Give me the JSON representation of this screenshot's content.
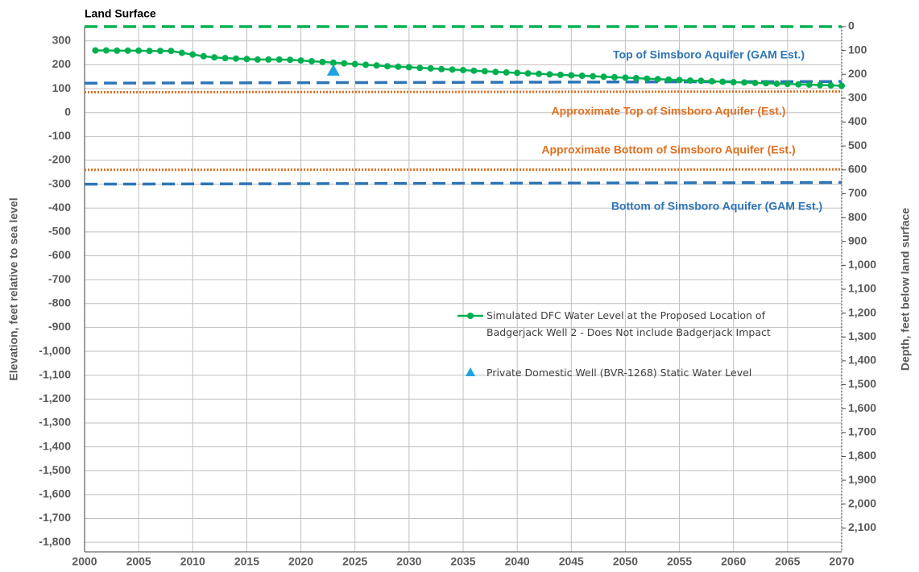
{
  "chart_data": {
    "type": "line",
    "y_label": "Elevation, feet relative to sea level",
    "y2_label": "Depth, feet below land surface",
    "xlim": [
      2000,
      2070
    ],
    "xticks": [
      2000,
      2005,
      2010,
      2015,
      2020,
      2025,
      2030,
      2035,
      2040,
      2045,
      2050,
      2055,
      2060,
      2065,
      2070
    ],
    "ylim": [
      -1840,
      360
    ],
    "yticks": [
      300,
      200,
      100,
      0,
      -100,
      -200,
      -300,
      -400,
      -500,
      -600,
      -700,
      -800,
      -900,
      {
        "value": -1000,
        "label": "-1,000"
      },
      {
        "value": -1100,
        "label": "-1,100"
      },
      {
        "value": -1200,
        "label": "-1,200"
      },
      {
        "value": -1300,
        "label": "-1,300"
      },
      {
        "value": -1400,
        "label": "-1,400"
      },
      {
        "value": -1500,
        "label": "-1,500"
      },
      {
        "value": -1600,
        "label": "-1,600"
      },
      {
        "value": -1700,
        "label": "-1,700"
      },
      {
        "value": -1800,
        "label": "-1,800"
      }
    ],
    "y2lim": [
      0,
      2200
    ],
    "y2ticks": [
      0,
      100,
      200,
      300,
      400,
      500,
      600,
      700,
      800,
      900,
      {
        "value": 1000,
        "label": "1,000"
      },
      {
        "value": 1100,
        "label": "1,100"
      },
      {
        "value": 1200,
        "label": "1,200"
      },
      {
        "value": 1300,
        "label": "1,300"
      },
      {
        "value": 1400,
        "label": "1,400"
      },
      {
        "value": 1500,
        "label": "1,500"
      },
      {
        "value": 1600,
        "label": "1,600"
      },
      {
        "value": 1700,
        "label": "1,700"
      },
      {
        "value": 1800,
        "label": "1,800"
      },
      {
        "value": 1900,
        "label": "1,900"
      },
      {
        "value": 2000,
        "label": "2,000"
      },
      {
        "value": 2100,
        "label": "2,100"
      }
    ],
    "grid": true,
    "series": [
      {
        "name": "Simulated DFC Water Level at the Proposed Location of Badgerjack Well 2  - Does Not include Badgerjack Impact",
        "color": "#00b050",
        "marker": "circle",
        "x": [
          2001,
          2002,
          2003,
          2004,
          2005,
          2006,
          2007,
          2008,
          2009,
          2010,
          2011,
          2012,
          2013,
          2014,
          2015,
          2016,
          2017,
          2018,
          2019,
          2020,
          2021,
          2022,
          2023,
          2024,
          2025,
          2026,
          2027,
          2028,
          2029,
          2030,
          2031,
          2032,
          2033,
          2034,
          2035,
          2036,
          2037,
          2038,
          2039,
          2040,
          2041,
          2042,
          2043,
          2044,
          2045,
          2046,
          2047,
          2048,
          2049,
          2050,
          2051,
          2052,
          2053,
          2054,
          2055,
          2056,
          2057,
          2058,
          2059,
          2060,
          2061,
          2062,
          2063,
          2064,
          2065,
          2066,
          2067,
          2068,
          2069,
          2070
        ],
        "values": [
          260,
          260,
          259,
          259,
          259,
          258,
          258,
          258,
          250,
          243,
          236,
          231,
          228,
          226,
          224,
          222,
          222,
          222,
          221,
          218,
          215,
          212,
          209,
          206,
          203,
          200,
          197,
          194,
          192,
          190,
          187,
          185,
          182,
          180,
          178,
          175,
          173,
          170,
          168,
          166,
          164,
          162,
          160,
          158,
          156,
          154,
          152,
          150,
          148,
          146,
          144,
          142,
          140,
          138,
          136,
          134,
          133,
          131,
          129,
          127,
          126,
          124,
          123,
          121,
          120,
          118,
          117,
          115,
          114,
          112
        ]
      },
      {
        "name": "Private Domestic Well (BVR-1268) Static Water Level",
        "color": "#1fa3e0",
        "marker": "triangle",
        "x": [
          2023
        ],
        "values": [
          175
        ]
      }
    ],
    "reference_lines": [
      {
        "name": "Land Surface",
        "color": "#00b050",
        "style": "dashed",
        "values": [
          360,
          360
        ]
      },
      {
        "name": "Top of Simsboro Aquifer (GAM Est.)",
        "color": "#2e75b6",
        "style": "dashed",
        "values": [
          123,
          130
        ]
      },
      {
        "name": "Approximate Top of Simsboro Aquifer (Est.)",
        "color": "#e07020",
        "style": "dotted",
        "values": [
          85,
          88
        ]
      },
      {
        "name": "Approximate Bottom of Simsboro Aquifer (Est.)",
        "color": "#e07020",
        "style": "dotted",
        "values": [
          -240,
          -238
        ]
      },
      {
        "name": "Bottom of Simsboro Aquifer (GAM Est.)",
        "color": "#2e75b6",
        "style": "dashed",
        "values": [
          -300,
          -293
        ]
      }
    ]
  }
}
